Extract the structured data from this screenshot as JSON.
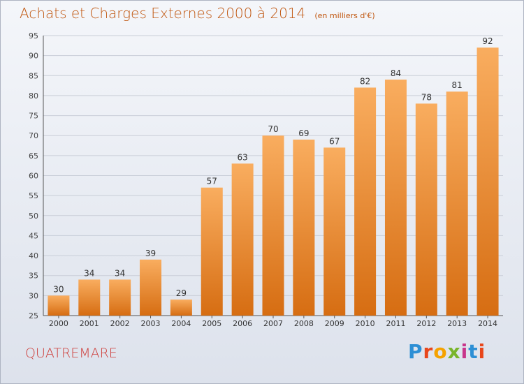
{
  "title": "Achats et Charges Externes 2000 à 2014",
  "subtitle": "(en milliers d'€)",
  "commune": "QUATREMARE",
  "logo": "Proxiti",
  "colors": {
    "title": "#c0560f",
    "bar_top": "#f9ad5f",
    "bar_bottom": "#d66d12",
    "commune": "#ce3d3a",
    "grid": "#c9ced8"
  },
  "chart_data": {
    "type": "bar",
    "title": "Achats et Charges Externes 2000 à 2014",
    "subtitle": "(en milliers d'€)",
    "categories": [
      "2000",
      "2001",
      "2002",
      "2003",
      "2004",
      "2005",
      "2006",
      "2007",
      "2008",
      "2009",
      "2010",
      "2011",
      "2012",
      "2013",
      "2014"
    ],
    "values": [
      30,
      34,
      34,
      39,
      29,
      57,
      63,
      70,
      69,
      67,
      82,
      84,
      78,
      81,
      92
    ],
    "ylim": [
      25,
      95
    ],
    "yticks": [
      25,
      30,
      35,
      40,
      45,
      50,
      55,
      60,
      65,
      70,
      75,
      80,
      85,
      90,
      95
    ],
    "grid": true,
    "data_labels": true,
    "xlabel": "",
    "ylabel": ""
  }
}
